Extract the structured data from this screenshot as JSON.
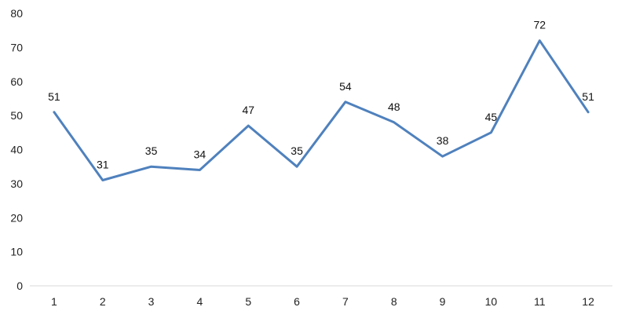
{
  "chart_data": {
    "type": "line",
    "title": "",
    "xlabel": "",
    "ylabel": "",
    "categories": [
      "1",
      "2",
      "3",
      "4",
      "5",
      "6",
      "7",
      "8",
      "9",
      "10",
      "11",
      "12"
    ],
    "series": [
      {
        "values": [
          51,
          31,
          35,
          34,
          47,
          35,
          54,
          48,
          38,
          45,
          72,
          51
        ]
      }
    ],
    "ylim": [
      0,
      80
    ],
    "yticks": [
      "0",
      "10",
      "20",
      "30",
      "40",
      "50",
      "60",
      "70",
      "80"
    ],
    "grid": false,
    "legend": "none",
    "data_labels": true,
    "colors": {
      "line": "#4f81bd",
      "axis": "#d9d9d9"
    }
  }
}
